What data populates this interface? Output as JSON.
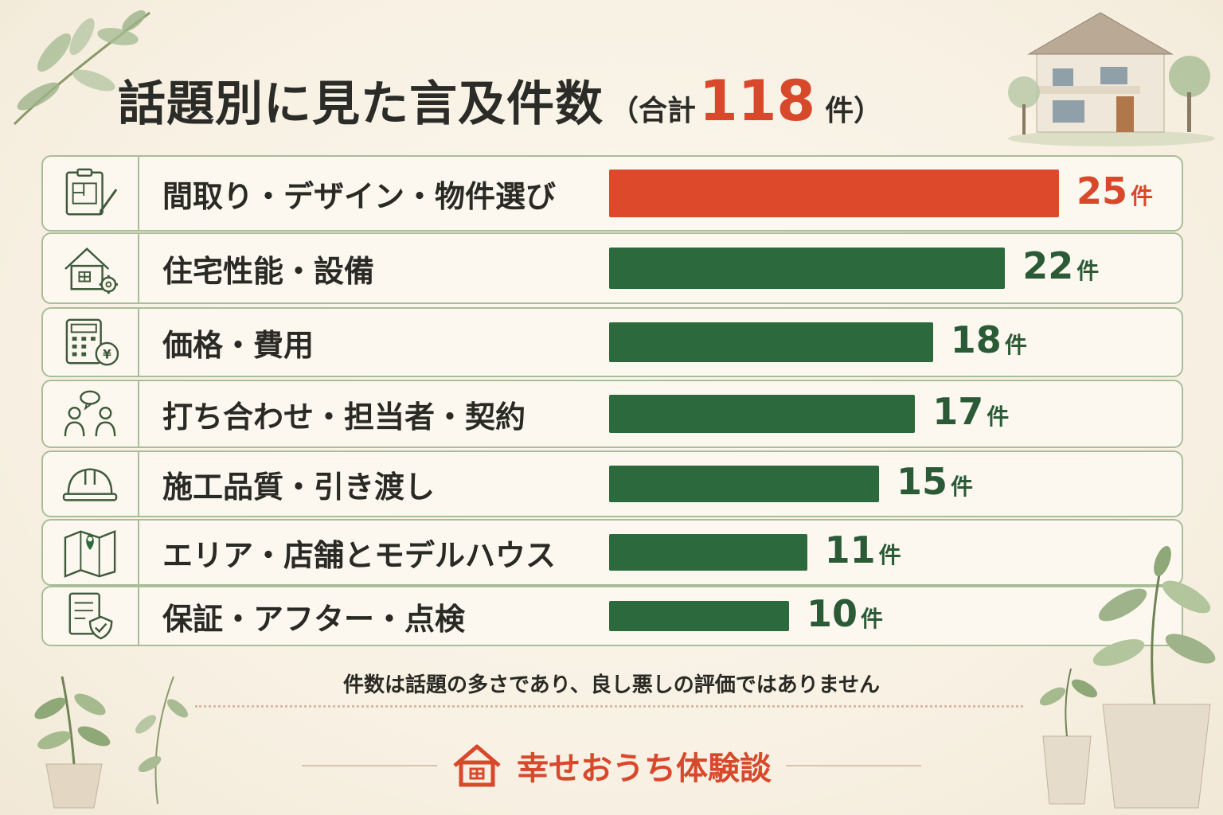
{
  "title": {
    "main": "話題別に見た言及件数",
    "open": "（合計",
    "total": "118",
    "close": "件）"
  },
  "chart_data": {
    "type": "bar",
    "orientation": "horizontal",
    "categories": [
      "間取り・デザイン・物件選び",
      "住宅性能・設備",
      "価格・費用",
      "打ち合わせ・担当者・契約",
      "施工品質・引き渡し",
      "エリア・店舗とモデルハウス",
      "保証・アフター・点検"
    ],
    "values": [
      25,
      22,
      18,
      17,
      15,
      11,
      10
    ],
    "value_labels": [
      "25",
      "22",
      "18",
      "17",
      "15",
      "11",
      "10"
    ],
    "unit": "件",
    "icons": [
      "floorplan-clipboard-icon",
      "house-gear-icon",
      "calculator-yen-icon",
      "meeting-people-icon",
      "hard-hat-icon",
      "map-pin-icon",
      "document-shield-icon"
    ],
    "highlight_index": 0,
    "colors": {
      "highlight": "#dc4a2b",
      "bar": "#2c6a3d",
      "highlight_text": "#d8492c",
      "value_text": "#2a5a36"
    },
    "grid": false,
    "legend": "none"
  },
  "note": "件数は話題の多さであり、良し悪しの評価ではありません",
  "footer": {
    "brand": "幸せおうち体験談",
    "icon": "house-logo-icon"
  }
}
